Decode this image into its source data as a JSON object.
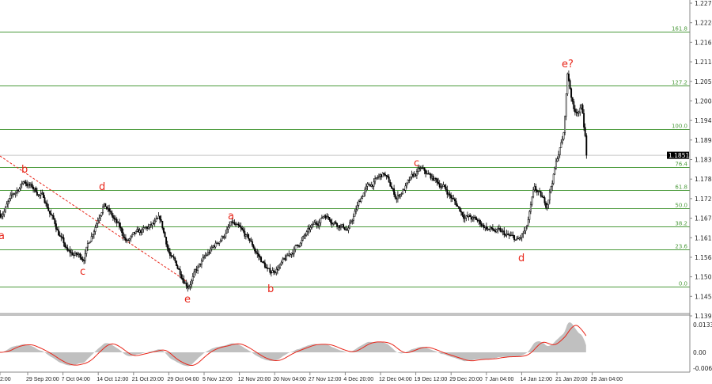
{
  "chart_data": {
    "type": "candlestick",
    "title": "",
    "price_axis": {
      "ticks": [
        "1.2279",
        "1.2224",
        "1.2169",
        "1.2114",
        "1.2059",
        "1.2004",
        "1.1949",
        "1.1894",
        "1.1839",
        "1.1784",
        "1.1729",
        "1.1674",
        "1.1619",
        "1.1564",
        "1.1509",
        "1.1454",
        "1.1399"
      ],
      "range": [
        1.1399,
        1.2279
      ]
    },
    "current_price": "1.1851",
    "time_axis": {
      "ticks": [
        "2:00",
        "29 Sep 20:00",
        "7 Oct 04:00",
        "14 Oct 12:00",
        "21 Oct 20:00",
        "29 Oct 04:00",
        "5 Nov 12:00",
        "12 Nov 20:00",
        "20 Nov 04:00",
        "27 Nov 12:00",
        "4 Dec 20:00",
        "12 Dec 04:00",
        "19 Dec 12:00",
        "29 Dec 20:00",
        "7 Jan 04:00",
        "14 Jan 12:00",
        "21 Jan 20:00",
        "29 Jan 04:00"
      ]
    },
    "fibonacci_levels": [
      {
        "label": "161.8",
        "price": 1.2199
      },
      {
        "label": "127.2",
        "price": 1.2047
      },
      {
        "label": "100.0",
        "price": 1.1925
      },
      {
        "label": "76.4",
        "price": 1.1818
      },
      {
        "label": "61.8",
        "price": 1.1754
      },
      {
        "label": "50.0",
        "price": 1.1702
      },
      {
        "label": "38.2",
        "price": 1.165
      },
      {
        "label": "23.6",
        "price": 1.1586
      },
      {
        "label": "0.0",
        "price": 1.1481
      }
    ],
    "price_swings": [
      [
        "24 Sep 03:00",
        1.1686
      ],
      [
        "29 Sep 00:00",
        1.178
      ],
      [
        "3 Oct 03:00",
        1.1731
      ],
      [
        "8 Oct 01:00",
        1.1575
      ],
      [
        "11 Oct 08:00",
        1.1564
      ],
      [
        "15 Oct 11:00",
        1.172
      ],
      [
        "20 Oct 09:00",
        1.1608
      ],
      [
        "27 Oct 07:00",
        1.1664
      ],
      [
        "29 Oct 11:00",
        1.1564
      ],
      [
        "2 Nov 01:00",
        1.149
      ],
      [
        "5 Nov 19:00",
        1.1564
      ],
      [
        "11 Nov 05:00",
        1.1657
      ],
      [
        "14 Nov 21:00",
        1.1608
      ],
      [
        "19 Nov 00:00",
        1.1519
      ],
      [
        "22 Nov 07:00",
        1.1553
      ],
      [
        "24 Nov 17:00",
        1.1597
      ],
      [
        "30 Nov 12:00",
        1.1686
      ],
      [
        "5 Dec 10:00",
        1.1642
      ],
      [
        "8 Dec 17:00",
        1.1753
      ],
      [
        "12 Dec 20:00",
        1.1798
      ],
      [
        "15 Dec 08:00",
        1.1731
      ],
      [
        "20 Dec 13:00",
        1.1809
      ],
      [
        "27 Dec 11:00",
        1.1764
      ],
      [
        "1 Jan 14:00",
        1.1686
      ],
      [
        "8 Jan 01:00",
        1.1642
      ],
      [
        "13 Jan 18:00",
        1.1608
      ],
      [
        "15 Jan 11:00",
        1.1642
      ],
      [
        "17 Jan 02:00",
        1.1753
      ],
      [
        "19 Jan 13:00",
        1.1709
      ],
      [
        "22 Jan 00:00",
        1.1854
      ],
      [
        "23 Jan 04:00",
        1.1909
      ],
      [
        "23 Jan 23:00",
        1.2083
      ],
      [
        "25 Jan 07:00",
        1.1976
      ],
      [
        "26 Jan 23:00",
        1.1987
      ],
      [
        "28 Jan 02:00",
        1.1851
      ]
    ],
    "wave_labels": [
      "a",
      "b",
      "c",
      "d",
      "e",
      "a",
      "b",
      "c",
      "d",
      "e?"
    ],
    "trendline": {
      "style": "dashed",
      "color": "#e8261a"
    },
    "oscillator": {
      "ticks": [
        "0.01334",
        "0.00",
        "-0.00695"
      ],
      "histogram_color": "#c0c0c0",
      "signal_color": "#e8261a"
    },
    "colors": {
      "candles": "#000000",
      "fib_lines": "#4a9a3a",
      "waves": "#e8261a",
      "current_price_bg": "#000000"
    }
  }
}
